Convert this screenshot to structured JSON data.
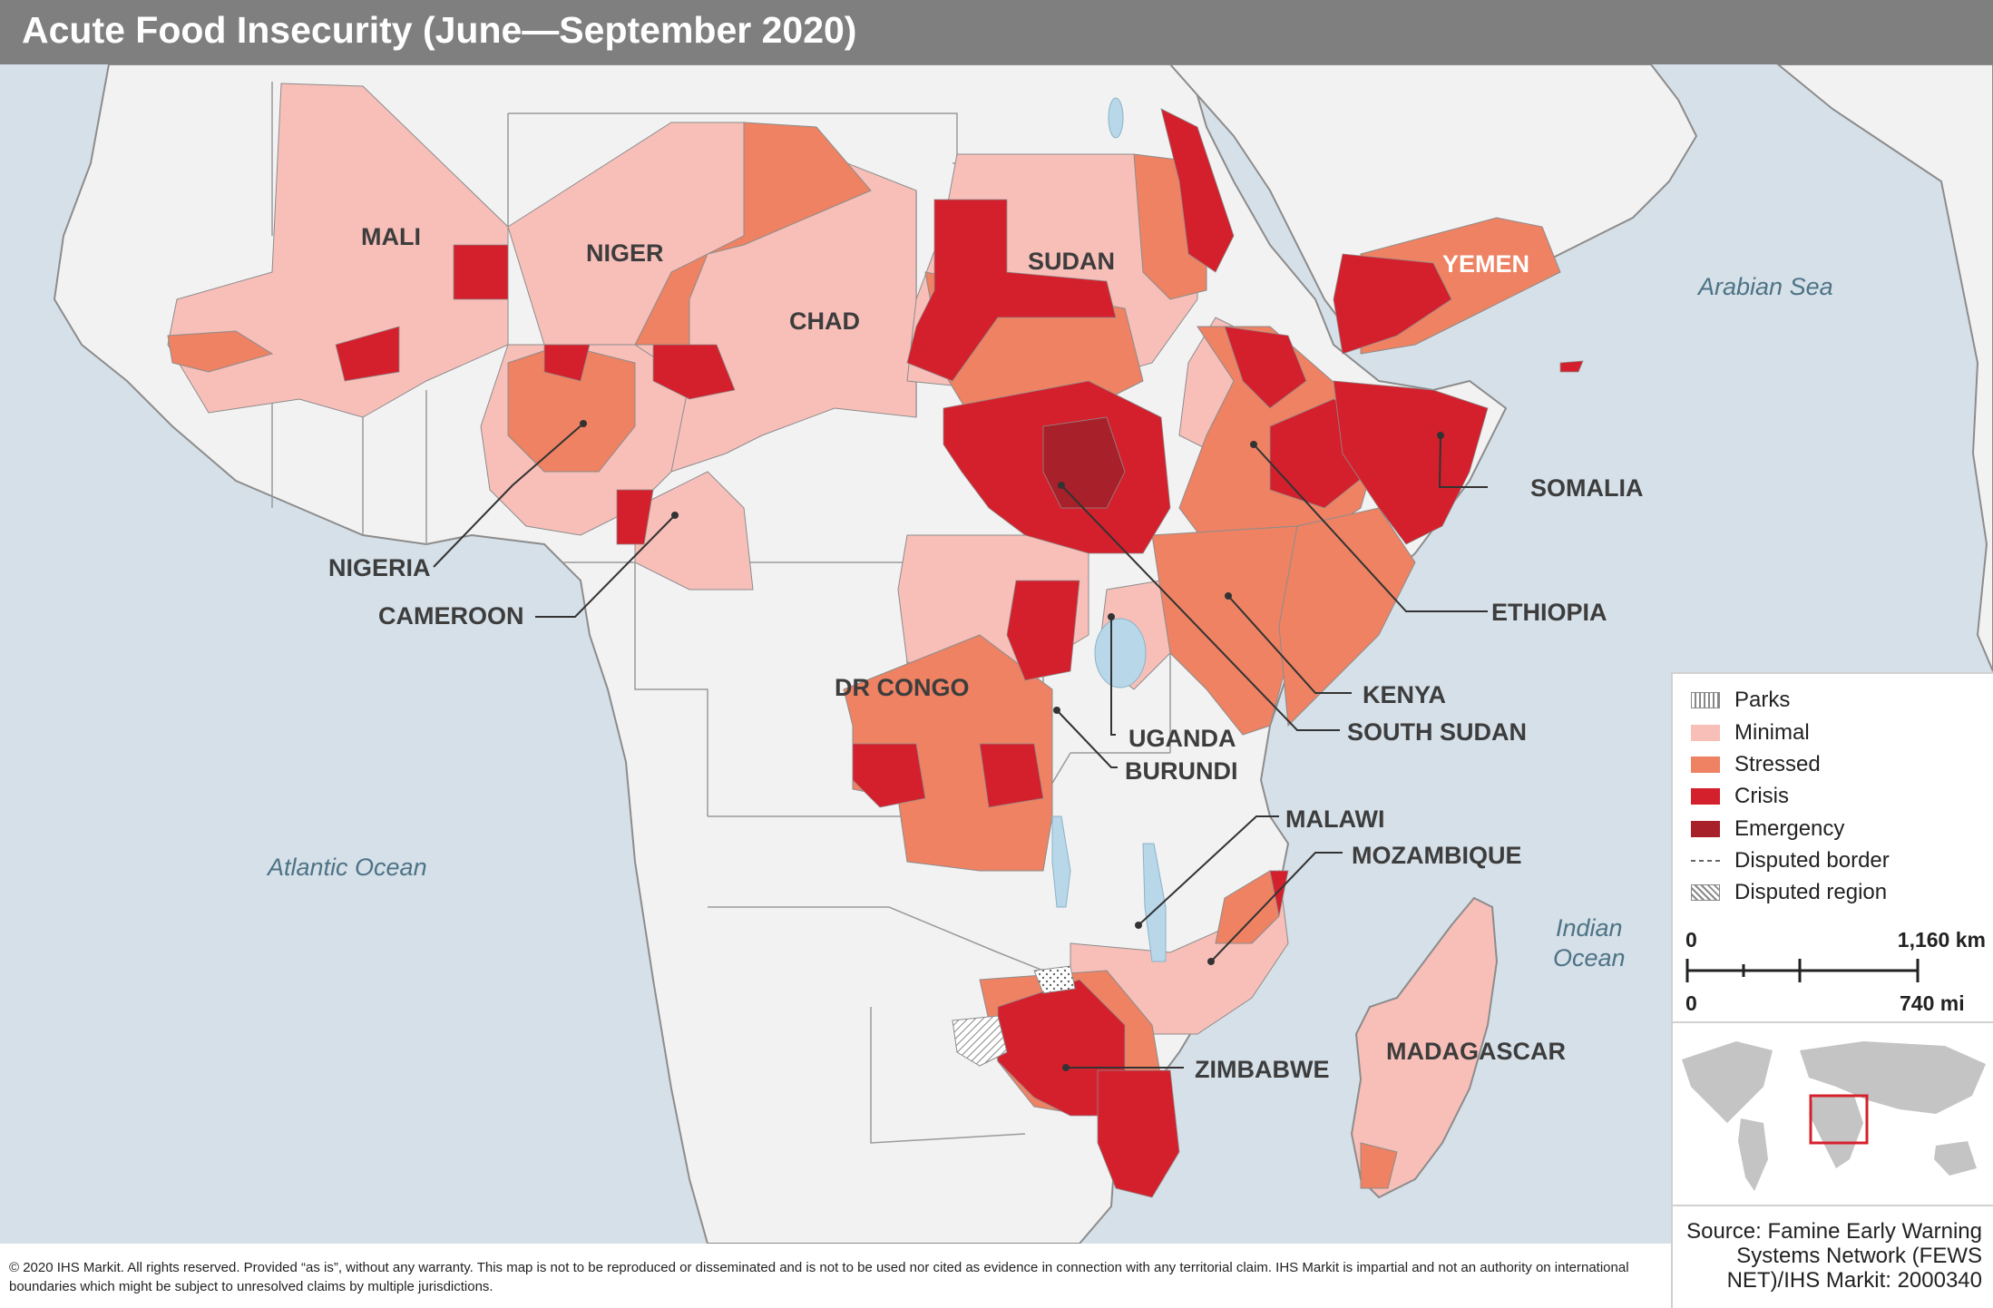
{
  "title": "Acute Food Insecurity (June—September 2020)",
  "colors": {
    "ocean": "#d6e0e8",
    "land": "#f2f2f2",
    "border": "#8c8c8c",
    "minimal": "#f8bfb9",
    "stressed": "#ee8263",
    "crisis": "#d4202c",
    "emergency": "#a8202a",
    "water": "#b8d7e8",
    "inset_box": "#d4202c"
  },
  "oceans": {
    "atlantic": "Atlantic Ocean",
    "arabian_sea": "Arabian Sea",
    "indian_line1": "Indian",
    "indian_line2": "Ocean"
  },
  "countries": {
    "mali": "MALI",
    "niger": "NIGER",
    "chad": "CHAD",
    "sudan": "SUDAN",
    "yemen": "YEMEN",
    "somalia": "SOMALIA",
    "ethiopia": "ETHIOPIA",
    "kenya": "KENYA",
    "south_sudan": "SOUTH SUDAN",
    "nigeria": "NIGERIA",
    "cameroon": "CAMEROON",
    "dr_congo": "DR CONGO",
    "uganda": "UGANDA",
    "burundi": "BURUNDI",
    "malawi": "MALAWI",
    "mozambique": "MOZAMBIQUE",
    "zimbabwe": "ZIMBABWE",
    "madagascar": "MADAGASCAR"
  },
  "legend": {
    "items": [
      {
        "label": "Parks",
        "icon": "parks-pattern"
      },
      {
        "label": "Minimal",
        "color": "#f8bfb9"
      },
      {
        "label": "Stressed",
        "color": "#ee8263"
      },
      {
        "label": "Crisis",
        "color": "#d4202c"
      },
      {
        "label": "Emergency",
        "color": "#a8202a"
      },
      {
        "label": "Disputed border",
        "icon": "dashed-line"
      },
      {
        "label": "Disputed region",
        "icon": "hatch-pattern"
      }
    ],
    "scale": {
      "km_zero": "0",
      "km_value": "1,160 km",
      "mi_zero": "0",
      "mi_value": "740 mi"
    }
  },
  "source": "Source: Famine Early Warning Systems Network (FEWS NET)/IHS Markit: 2000340",
  "disclaimer": "© 2020 IHS Markit. All rights reserved. Provided “as is”, without any warranty. This map is not to be reproduced or disseminated and is not to be used nor cited as evidence in connection with any territorial claim. IHS Markit is impartial and not an authority on international boundaries which might be subject to unresolved claims by multiple jurisdictions."
}
